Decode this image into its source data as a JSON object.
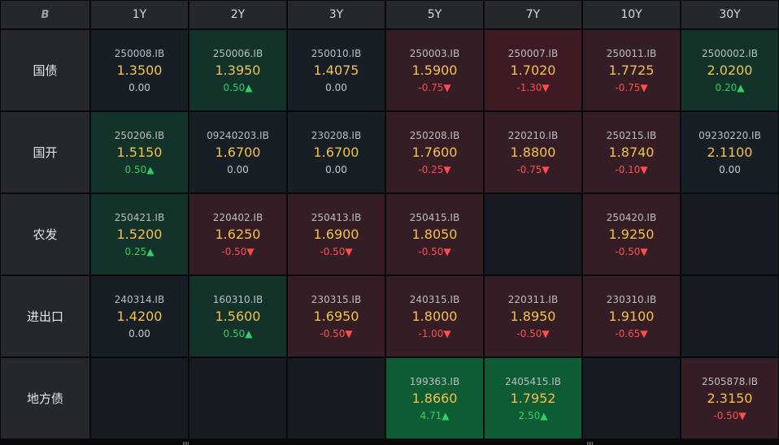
{
  "corner_icon": "B",
  "columns": [
    "1Y",
    "2Y",
    "3Y",
    "5Y",
    "7Y",
    "10Y",
    "30Y"
  ],
  "rows": [
    {
      "label": "国债",
      "cells": [
        {
          "code": "250008.IB",
          "yield": "1.3500",
          "change": "0.00",
          "dir": "flat",
          "bg": "neutral"
        },
        {
          "code": "250006.IB",
          "yield": "1.3950",
          "change": "0.50▲",
          "dir": "up",
          "bg": "green"
        },
        {
          "code": "250010.IB",
          "yield": "1.4075",
          "change": "0.00",
          "dir": "flat",
          "bg": "neutral"
        },
        {
          "code": "250003.IB",
          "yield": "1.5900",
          "change": "-0.75▼",
          "dir": "down",
          "bg": "red"
        },
        {
          "code": "250007.IB",
          "yield": "1.7020",
          "change": "-1.30▼",
          "dir": "down",
          "bg": "red2"
        },
        {
          "code": "250011.IB",
          "yield": "1.7725",
          "change": "-0.75▼",
          "dir": "down",
          "bg": "red"
        },
        {
          "code": "2500002.IB",
          "yield": "2.0200",
          "change": "0.20▲",
          "dir": "up",
          "bg": "green"
        }
      ]
    },
    {
      "label": "国开",
      "cells": [
        {
          "code": "250206.IB",
          "yield": "1.5150",
          "change": "0.50▲",
          "dir": "up",
          "bg": "green"
        },
        {
          "code": "09240203.IB",
          "yield": "1.6700",
          "change": "0.00",
          "dir": "flat",
          "bg": "neutral"
        },
        {
          "code": "230208.IB",
          "yield": "1.6700",
          "change": "0.00",
          "dir": "flat",
          "bg": "neutral"
        },
        {
          "code": "250208.IB",
          "yield": "1.7600",
          "change": "-0.25▼",
          "dir": "down",
          "bg": "red"
        },
        {
          "code": "220210.IB",
          "yield": "1.8800",
          "change": "-0.75▼",
          "dir": "down",
          "bg": "red"
        },
        {
          "code": "250215.IB",
          "yield": "1.8740",
          "change": "-0.10▼",
          "dir": "down",
          "bg": "red"
        },
        {
          "code": "09230220.IB",
          "yield": "2.1100",
          "change": "0.00",
          "dir": "flat",
          "bg": "neutral"
        }
      ]
    },
    {
      "label": "农发",
      "cells": [
        {
          "code": "250421.IB",
          "yield": "1.5200",
          "change": "0.25▲",
          "dir": "up",
          "bg": "green"
        },
        {
          "code": "220402.IB",
          "yield": "1.6250",
          "change": "-0.50▼",
          "dir": "down",
          "bg": "red"
        },
        {
          "code": "250413.IB",
          "yield": "1.6900",
          "change": "-0.50▼",
          "dir": "down",
          "bg": "red"
        },
        {
          "code": "250415.IB",
          "yield": "1.8050",
          "change": "-0.50▼",
          "dir": "down",
          "bg": "red"
        },
        null,
        {
          "code": "250420.IB",
          "yield": "1.9250",
          "change": "-0.50▼",
          "dir": "down",
          "bg": "red"
        },
        null
      ]
    },
    {
      "label": "进出口",
      "cells": [
        {
          "code": "240314.IB",
          "yield": "1.4200",
          "change": "0.00",
          "dir": "flat",
          "bg": "neutral"
        },
        {
          "code": "160310.IB",
          "yield": "1.5600",
          "change": "0.50▲",
          "dir": "up",
          "bg": "green"
        },
        {
          "code": "230315.IB",
          "yield": "1.6950",
          "change": "-0.50▼",
          "dir": "down",
          "bg": "red"
        },
        {
          "code": "240315.IB",
          "yield": "1.8000",
          "change": "-1.00▼",
          "dir": "down",
          "bg": "red"
        },
        {
          "code": "220311.IB",
          "yield": "1.8950",
          "change": "-0.50▼",
          "dir": "down",
          "bg": "red"
        },
        {
          "code": "230310.IB",
          "yield": "1.9100",
          "change": "-0.65▼",
          "dir": "down",
          "bg": "red"
        },
        null
      ]
    },
    {
      "label": "地方债",
      "cells": [
        null,
        null,
        null,
        {
          "code": "199363.IB",
          "yield": "1.8660",
          "change": "4.71▲",
          "dir": "up",
          "bg": "green-strong"
        },
        {
          "code": "2405415.IB",
          "yield": "1.7952",
          "change": "2.50▲",
          "dir": "up",
          "bg": "green-strong"
        },
        null,
        {
          "code": "2505878.IB",
          "yield": "2.3150",
          "change": "-0.50▼",
          "dir": "down",
          "bg": "red"
        }
      ]
    }
  ],
  "colors": {
    "yield_text": "#f3c14b",
    "up": "#2fcf63",
    "down": "#ff4d4f",
    "header_bg": "#24282d"
  }
}
